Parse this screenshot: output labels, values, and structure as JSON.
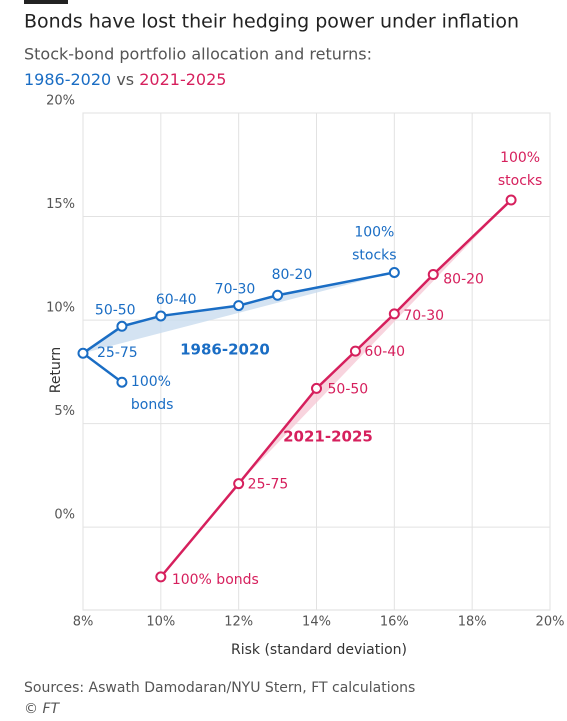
{
  "chart_data": {
    "type": "line",
    "title": "Bonds have lost their hedging power under inflation",
    "subtitle": "Stock-bond portfolio allocation and returns:",
    "subtitle_joiner": "vs",
    "xlabel": "Risk (standard deviation)",
    "ylabel": "Return",
    "xlim": [
      8,
      20
    ],
    "ylim": [
      -4,
      20
    ],
    "xticks": [
      {
        "value": 8,
        "label": "8%"
      },
      {
        "value": 10,
        "label": "10%"
      },
      {
        "value": 12,
        "label": "12%"
      },
      {
        "value": 14,
        "label": "14%"
      },
      {
        "value": 16,
        "label": "16%"
      },
      {
        "value": 18,
        "label": "18%"
      },
      {
        "value": 20,
        "label": "20%"
      }
    ],
    "yticks": [
      {
        "value": 0,
        "label": "0%"
      },
      {
        "value": 5,
        "label": "5%"
      },
      {
        "value": 10,
        "label": "10%"
      },
      {
        "value": 15,
        "label": "15%"
      },
      {
        "value": 20,
        "label": "20%"
      }
    ],
    "grid": true,
    "series": [
      {
        "name": "1986-2020",
        "color": "#1a6dc4",
        "fill": "#c9dcef",
        "x": [
          9,
          8,
          9,
          10,
          12,
          13,
          16
        ],
        "values": [
          7.0,
          8.4,
          9.7,
          10.2,
          10.7,
          11.2,
          12.3
        ],
        "labels": [
          [
            "100%",
            "bonds"
          ],
          [
            "25-75"
          ],
          [
            "50-50"
          ],
          [
            "60-40"
          ],
          [
            "70-30"
          ],
          [
            "80-20"
          ],
          [
            "100%",
            "stocks"
          ]
        ]
      },
      {
        "name": "2021-2025",
        "color": "#d6205d",
        "fill": "#f6c9d6",
        "x": [
          10,
          12,
          14,
          15,
          16,
          17,
          19
        ],
        "values": [
          -2.4,
          2.1,
          6.7,
          8.5,
          10.3,
          12.2,
          15.8
        ],
        "labels": [
          [
            "100% bonds"
          ],
          [
            "25-75"
          ],
          [
            "50-50"
          ],
          [
            "60-40"
          ],
          [
            "70-30"
          ],
          [
            "80-20"
          ],
          [
            "100%",
            "stocks"
          ]
        ]
      }
    ],
    "source": "Sources: Aswath Damodaran/NYU Stern, FT calculations",
    "credit": "© FT"
  }
}
